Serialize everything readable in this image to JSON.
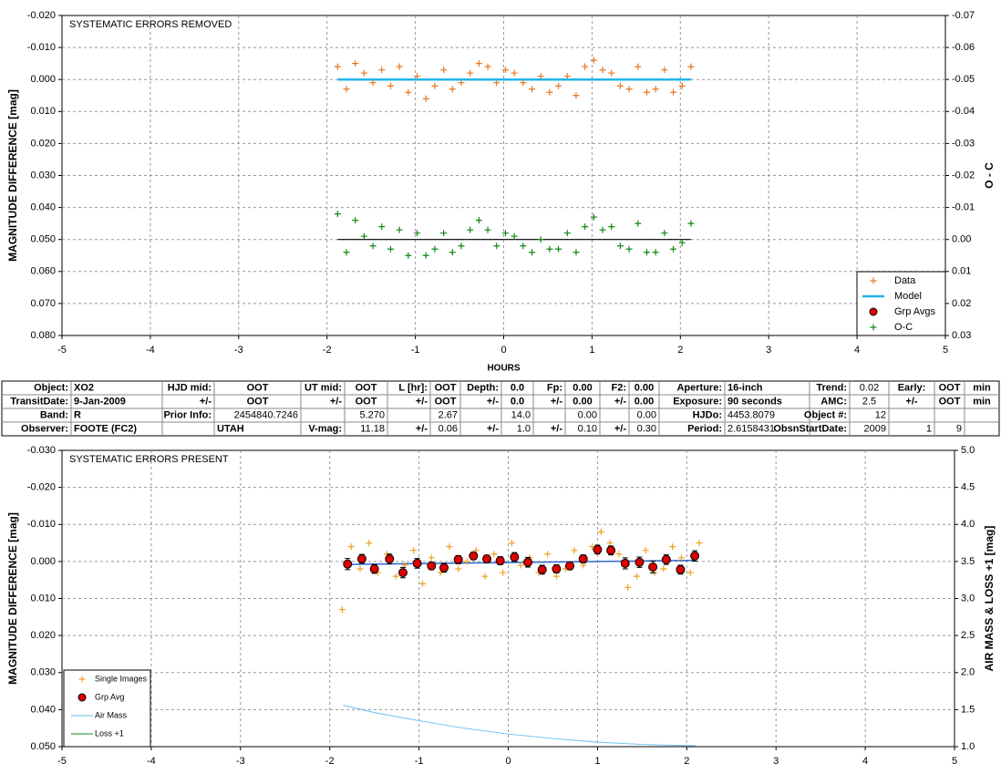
{
  "chart_data": [
    {
      "type": "scatter",
      "title": "SYSTEMATIC ERRORS REMOVED",
      "y_label": "MAGNITUDE DIFFERENCE [mag]",
      "y2_label": "O - C",
      "x_label": "HOURS",
      "xlim": [
        -5,
        5
      ],
      "xticks": [
        -5,
        -4,
        -3,
        -2,
        -1,
        0,
        1,
        2,
        3,
        4,
        5
      ],
      "ylim": [
        -0.02,
        0.08
      ],
      "y_inverted": true,
      "yticks": [
        {
          "value": -0.02,
          "label": "-0.020"
        },
        {
          "value": -0.01,
          "label": "-0.010"
        },
        {
          "value": 0,
          "label": "0.000"
        },
        {
          "value": 0.01,
          "label": "0.010"
        },
        {
          "value": 0.02,
          "label": "0.020"
        },
        {
          "value": 0.03,
          "label": "0.030"
        },
        {
          "value": 0.04,
          "label": "0.040"
        },
        {
          "value": 0.05,
          "label": "0.050"
        },
        {
          "value": 0.06,
          "label": "0.060"
        },
        {
          "value": 0.07,
          "label": "0.070"
        },
        {
          "value": 0.08,
          "label": "0.080"
        }
      ],
      "y2lim": [
        -0.07,
        0.03
      ],
      "y2_inverted": true,
      "y2ticks": [
        {
          "value": -0.07,
          "label": "-0.07"
        },
        {
          "value": -0.06,
          "label": "-0.06"
        },
        {
          "value": -0.05,
          "label": "-0.05"
        },
        {
          "value": -0.04,
          "label": "-0.04"
        },
        {
          "value": -0.03,
          "label": "-0.03"
        },
        {
          "value": -0.02,
          "label": "-0.02"
        },
        {
          "value": -0.01,
          "label": "-0.01"
        },
        {
          "value": 0,
          "label": "0.00"
        },
        {
          "value": 0.01,
          "label": "0.01"
        },
        {
          "value": 0.02,
          "label": "0.02"
        },
        {
          "value": 0.03,
          "label": "0.03"
        }
      ],
      "grid": true,
      "legend": "lower right",
      "oc_zero_line": true,
      "series": [
        {
          "name": "Data",
          "color": "#e8761e",
          "marker": "plus",
          "x": [
            -1.88,
            -1.78,
            -1.68,
            -1.58,
            -1.48,
            -1.38,
            -1.28,
            -1.18,
            -1.08,
            -0.98,
            -0.88,
            -0.78,
            -0.68,
            -0.58,
            -0.48,
            -0.38,
            -0.28,
            -0.18,
            -0.08,
            0.02,
            0.12,
            0.22,
            0.32,
            0.42,
            0.52,
            0.62,
            0.72,
            0.82,
            0.92,
            1.02,
            1.12,
            1.22,
            1.32,
            1.42,
            1.52,
            1.62,
            1.72,
            1.82,
            1.92,
            2.02,
            2.12
          ],
          "values": [
            -0.004,
            0.003,
            -0.005,
            -0.002,
            0.001,
            -0.003,
            0.002,
            -0.004,
            0.004,
            -0.001,
            0.006,
            0.002,
            -0.003,
            0.003,
            0.001,
            -0.002,
            -0.005,
            -0.004,
            0.001,
            -0.003,
            -0.002,
            0.001,
            0.003,
            -0.001,
            0.004,
            0.002,
            -0.001,
            0.005,
            -0.004,
            -0.006,
            -0.003,
            -0.002,
            0.002,
            0.003,
            -0.004,
            0.004,
            0.003,
            -0.003,
            0.004,
            0.002,
            -0.004
          ]
        },
        {
          "name": "Model",
          "color": "#22b5e8",
          "marker": "line",
          "x": [
            -1.88,
            2.12
          ],
          "values": [
            0,
            0
          ]
        },
        {
          "name": "Grp Avgs",
          "color": "#dd0000",
          "marker": "circle",
          "x": [],
          "values": []
        },
        {
          "name": "O-C",
          "color": "#118811",
          "marker": "plus",
          "axis": "y2",
          "x": [
            -1.88,
            -1.78,
            -1.68,
            -1.58,
            -1.48,
            -1.38,
            -1.28,
            -1.18,
            -1.08,
            -0.98,
            -0.88,
            -0.78,
            -0.68,
            -0.58,
            -0.48,
            -0.38,
            -0.28,
            -0.18,
            -0.08,
            0.02,
            0.12,
            0.22,
            0.32,
            0.42,
            0.52,
            0.62,
            0.72,
            0.82,
            0.92,
            1.02,
            1.12,
            1.22,
            1.32,
            1.42,
            1.52,
            1.62,
            1.72,
            1.82,
            1.92,
            2.02,
            2.12
          ],
          "values": [
            -0.008,
            0.004,
            -0.006,
            -0.001,
            0.002,
            -0.004,
            0.003,
            -0.003,
            0.005,
            -0.002,
            0.005,
            0.003,
            -0.002,
            0.004,
            0.002,
            -0.003,
            -0.006,
            -0.003,
            0.002,
            -0.002,
            -0.001,
            0.002,
            0.004,
            0.0,
            0.003,
            0.003,
            -0.002,
            0.004,
            -0.004,
            -0.007,
            -0.003,
            -0.004,
            0.002,
            0.003,
            -0.005,
            0.004,
            0.004,
            -0.002,
            0.003,
            0.001,
            -0.005
          ]
        }
      ]
    },
    {
      "type": "scatter",
      "title": "SYSTEMATIC ERRORS PRESENT",
      "y_label": "MAGNITUDE DIFFERENCE [mag]",
      "y2_label": "AIR MASS & LOSS +1 [mag]",
      "xlim": [
        -5,
        5
      ],
      "xticks": [
        -5,
        -4,
        -3,
        -2,
        -1,
        0,
        1,
        2,
        3,
        4,
        5
      ],
      "ylim": [
        -0.03,
        0.05
      ],
      "y_inverted": true,
      "yticks": [
        {
          "value": -0.03,
          "label": "-0.030"
        },
        {
          "value": -0.02,
          "label": "-0.020"
        },
        {
          "value": -0.01,
          "label": "-0.010"
        },
        {
          "value": 0,
          "label": "0.000"
        },
        {
          "value": 0.01,
          "label": "0.010"
        },
        {
          "value": 0.02,
          "label": "0.020"
        },
        {
          "value": 0.03,
          "label": "0.030"
        },
        {
          "value": 0.04,
          "label": "0.040"
        },
        {
          "value": 0.05,
          "label": "0.050"
        }
      ],
      "y2lim": [
        1,
        5
      ],
      "y2_inverted": false,
      "y2ticks": [
        {
          "value": 1,
          "label": "1.0"
        },
        {
          "value": 1.5,
          "label": "1.5"
        },
        {
          "value": 2,
          "label": "2.0"
        },
        {
          "value": 2.5,
          "label": "2.5"
        },
        {
          "value": 3,
          "label": "3.0"
        },
        {
          "value": 3.5,
          "label": "3.5"
        },
        {
          "value": 4,
          "label": "4.0"
        },
        {
          "value": 4.5,
          "label": "4.5"
        },
        {
          "value": 5,
          "label": "5.0"
        }
      ],
      "grid": true,
      "legend": "lower left",
      "model_line": {
        "color": "#3366cc",
        "x": [
          -1.8,
          2.1
        ],
        "values": [
          0.0008,
          -0.0003
        ]
      },
      "series": [
        {
          "name": "Single Images",
          "color": "#f0a020",
          "marker": "plus",
          "x": [
            -1.86,
            -1.76,
            -1.66,
            -1.56,
            -1.46,
            -1.36,
            -1.26,
            -1.16,
            -1.06,
            -0.96,
            -0.86,
            -0.76,
            -0.66,
            -0.56,
            -0.46,
            -0.36,
            -0.26,
            -0.16,
            -0.06,
            0.04,
            0.14,
            0.24,
            0.34,
            0.44,
            0.54,
            0.64,
            0.74,
            0.84,
            0.94,
            1.04,
            1.14,
            1.24,
            1.34,
            1.44,
            1.54,
            1.64,
            1.74,
            1.84,
            1.94,
            2.04,
            2.14
          ],
          "values": [
            0.013,
            -0.004,
            0.002,
            -0.005,
            0.003,
            -0.002,
            0.004,
            0.001,
            -0.003,
            0.006,
            -0.001,
            0.003,
            -0.004,
            0.002,
            0.0,
            -0.003,
            0.004,
            -0.002,
            0.003,
            -0.005,
            0.001,
            -0.001,
            0.003,
            -0.002,
            0.004,
            0.002,
            -0.003,
            0.001,
            -0.004,
            -0.008,
            -0.005,
            -0.002,
            0.007,
            0.004,
            -0.003,
            0.003,
            0.002,
            -0.004,
            -0.001,
            0.003,
            -0.005
          ]
        },
        {
          "name": "Grp Avg",
          "color": "#dd0000",
          "marker": "circle",
          "x": [
            -1.8,
            -1.64,
            -1.5,
            -1.33,
            -1.18,
            -1.02,
            -0.86,
            -0.72,
            -0.56,
            -0.39,
            -0.24,
            -0.09,
            0.07,
            0.22,
            0.38,
            0.54,
            0.69,
            0.84,
            1.0,
            1.15,
            1.31,
            1.47,
            1.62,
            1.77,
            1.93,
            2.09
          ],
          "values": [
            0.0007,
            -0.0007,
            0.002,
            -0.0007,
            0.003,
            0.0005,
            0.0012,
            0.0017,
            -0.0005,
            -0.0015,
            -0.0007,
            -0.0002,
            -0.0012,
            0.0002,
            0.0022,
            0.002,
            0.0012,
            -0.0007,
            -0.0032,
            -0.003,
            0.0005,
            0.0002,
            0.0015,
            -0.0005,
            0.0022,
            -0.0015
          ],
          "errors": [
            0.0015,
            0.0012,
            0.0012,
            0.0013,
            0.0014,
            0.0013,
            0.001,
            0.0012,
            0.0011,
            0.001,
            0.001,
            0.0011,
            0.0012,
            0.0013,
            0.0012,
            0.0011,
            0.001,
            0.0011,
            0.0012,
            0.0012,
            0.0015,
            0.0014,
            0.0016,
            0.0013,
            0.0012,
            0.0014
          ]
        },
        {
          "name": "Air Mass",
          "color": "#66c0f0",
          "marker": "line",
          "axis": "y2",
          "x": [
            -1.85,
            -1.5,
            -1,
            -0.5,
            0,
            0.5,
            1,
            1.5,
            2.1
          ],
          "values": [
            1.56,
            1.46,
            1.35,
            1.25,
            1.17,
            1.11,
            1.06,
            1.03,
            1.01
          ]
        },
        {
          "name": "Loss +1",
          "color": "#118811",
          "marker": "line",
          "axis": "y2",
          "x": [],
          "values": []
        }
      ]
    }
  ],
  "table": {
    "rows": [
      [
        "Object:",
        "XO2",
        "HJD mid:",
        "OOT",
        "UT mid:",
        "OOT",
        "L [hr]:",
        "OOT",
        "Depth:",
        "0.0",
        "Fp:",
        "0.00",
        "F2:",
        "0.00",
        "Aperture:",
        "16-inch",
        "Trend:",
        "0.02",
        "Early:",
        "OOT",
        "min"
      ],
      [
        "TransitDate:",
        "9-Jan-2009",
        "+/-",
        "OOT",
        "+/-",
        "OOT",
        "+/-",
        "OOT",
        "+/-",
        "0.0",
        "+/-",
        "0.00",
        "+/-",
        "0.00",
        "Exposure:",
        "90 seconds",
        "AMC:",
        "2.5",
        "+/-",
        "OOT",
        "min"
      ],
      [
        "Band:",
        "R",
        "Prior Info:",
        "2454840.7246",
        null,
        "5.270",
        null,
        "2.67",
        null,
        "14.0",
        null,
        "0.00",
        null,
        "0.00",
        "HJDo:",
        "4453.8079",
        "Object #:",
        "12",
        null,
        null,
        null
      ],
      [
        "Observer:",
        "FOOTE (FC2)",
        null,
        "UTAH",
        "V-mag:",
        "11.18",
        "+/-",
        "0.06",
        "+/-",
        "1.0",
        "+/-",
        "0.10",
        "+/-",
        "0.30",
        "Period:",
        "2.6158431",
        "ObsnStartDate:",
        "2009",
        "1",
        "9",
        null
      ]
    ]
  }
}
